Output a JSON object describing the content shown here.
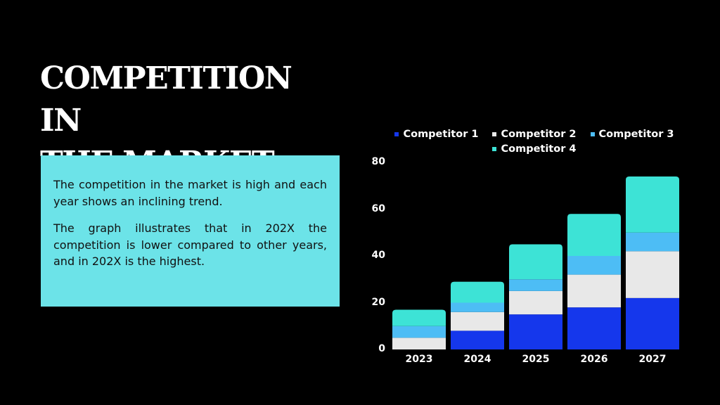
{
  "slide": {
    "title": "COMPETITION IN THE MARKET",
    "title_lines": [
      "COMPETITION IN",
      "THE MARKET"
    ],
    "paragraphs": [
      "The competition in the market is high and each year shows an inclining trend.",
      "The graph illustrates that in 202X the competition is lower compared to other years, and in 202X is the highest."
    ],
    "colors": {
      "background": "#000000",
      "text_box": "#6ce3e8"
    }
  },
  "legend": {
    "items": [
      {
        "label": "Competitor 1",
        "color": "#1537ec"
      },
      {
        "label": "Competitor 2",
        "color": "#e8e8e8"
      },
      {
        "label": "Competitor 3",
        "color": "#4dbdf5"
      },
      {
        "label": "Competitor 4",
        "color": "#3de3d6"
      }
    ]
  },
  "chart_data": {
    "type": "bar",
    "stacked": true,
    "title": "",
    "xlabel": "",
    "ylabel": "",
    "categories": [
      "2023",
      "2024",
      "2025",
      "2026",
      "2027"
    ],
    "series": [
      {
        "name": "Competitor 1",
        "color": "#1537ec",
        "values": [
          0,
          8,
          15,
          18,
          22
        ]
      },
      {
        "name": "Competitor 2",
        "color": "#e8e8e8",
        "values": [
          5,
          8,
          10,
          14,
          20
        ]
      },
      {
        "name": "Competitor 3",
        "color": "#4dbdf5",
        "values": [
          5,
          4,
          5,
          8,
          8
        ]
      },
      {
        "name": "Competitor 4",
        "color": "#3de3d6",
        "values": [
          7,
          9,
          15,
          18,
          24
        ]
      }
    ],
    "totals": [
      17,
      29,
      45,
      58,
      74
    ],
    "ylim": [
      0,
      80
    ],
    "yticks": [
      "0",
      "20",
      "40",
      "60",
      "80"
    ],
    "grid": false,
    "legend_position": "top"
  }
}
